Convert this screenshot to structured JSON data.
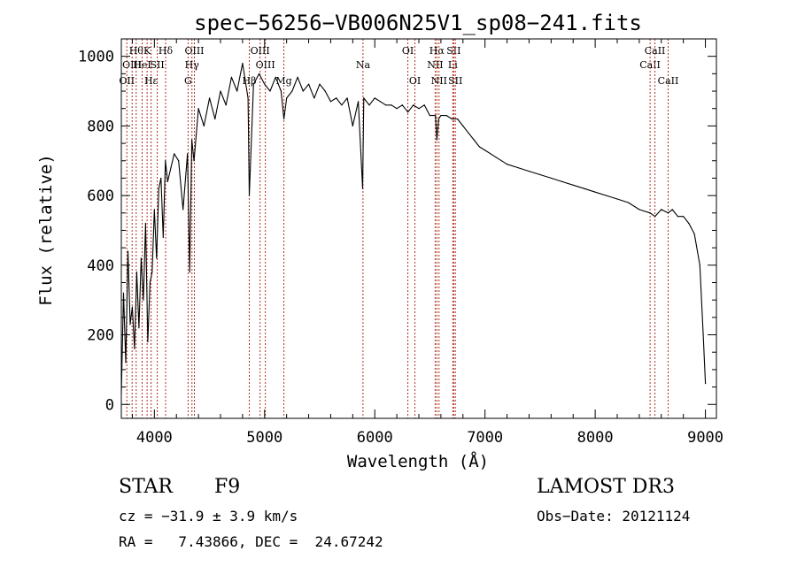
{
  "chart_data": {
    "type": "line",
    "title": "spec−56256−VB006N25V1_sp08−241.fits",
    "xlabel": "Wavelength (Å)",
    "ylabel": "Flux (relative)",
    "xlim": [
      3700,
      9100
    ],
    "ylim": [
      -40,
      1050
    ],
    "xticks": [
      4000,
      5000,
      6000,
      7000,
      8000,
      9000
    ],
    "yticks": [
      0,
      200,
      400,
      600,
      800,
      1000
    ],
    "grid": false,
    "series": [
      {
        "name": "spectrum",
        "x": [
          3700,
          3720,
          3740,
          3760,
          3780,
          3800,
          3820,
          3840,
          3860,
          3880,
          3900,
          3920,
          3940,
          3960,
          3980,
          4000,
          4020,
          4040,
          4060,
          4080,
          4100,
          4120,
          4150,
          4180,
          4220,
          4260,
          4300,
          4320,
          4340,
          4360,
          4400,
          4450,
          4500,
          4550,
          4600,
          4650,
          4700,
          4750,
          4800,
          4850,
          4861,
          4900,
          4950,
          5000,
          5050,
          5100,
          5150,
          5175,
          5200,
          5250,
          5300,
          5350,
          5400,
          5450,
          5500,
          5550,
          5600,
          5650,
          5700,
          5750,
          5800,
          5850,
          5890,
          5900,
          5950,
          6000,
          6050,
          6100,
          6150,
          6200,
          6250,
          6300,
          6350,
          6400,
          6450,
          6500,
          6550,
          6563,
          6580,
          6600,
          6650,
          6700,
          6750,
          6800,
          6850,
          6900,
          6950,
          7000,
          7100,
          7200,
          7300,
          7400,
          7500,
          7600,
          7700,
          7800,
          7900,
          8000,
          8100,
          8200,
          8300,
          8400,
          8498,
          8542,
          8600,
          8662,
          8700,
          8750,
          8800,
          8850,
          8900,
          8950,
          8980,
          9000
        ],
        "values": [
          30,
          320,
          120,
          440,
          230,
          280,
          160,
          380,
          220,
          420,
          300,
          520,
          180,
          350,
          380,
          560,
          420,
          620,
          650,
          480,
          700,
          640,
          680,
          720,
          700,
          560,
          720,
          380,
          760,
          700,
          850,
          800,
          880,
          820,
          900,
          860,
          940,
          900,
          980,
          880,
          600,
          920,
          950,
          920,
          900,
          940,
          900,
          820,
          880,
          900,
          940,
          900,
          920,
          880,
          920,
          900,
          870,
          880,
          860,
          880,
          800,
          870,
          620,
          880,
          860,
          880,
          870,
          860,
          860,
          850,
          860,
          840,
          860,
          850,
          860,
          830,
          830,
          760,
          820,
          830,
          830,
          820,
          820,
          800,
          780,
          760,
          740,
          730,
          710,
          690,
          680,
          670,
          660,
          650,
          640,
          630,
          620,
          610,
          600,
          590,
          580,
          560,
          550,
          540,
          560,
          550,
          560,
          540,
          540,
          520,
          490,
          400,
          200,
          60
        ]
      }
    ],
    "lines": [
      {
        "wl": 3750,
        "label": "OII",
        "row": 2
      },
      {
        "wl": 3798,
        "label": "OIII",
        "row": 1
      },
      {
        "wl": 3835,
        "label": "Hθ",
        "row": 0
      },
      {
        "wl": 3889,
        "label": "HeI",
        "row": 1
      },
      {
        "wl": 3934,
        "label": "K",
        "row": 0
      },
      {
        "wl": 3970,
        "label": "Hε",
        "row": 2
      },
      {
        "wl": 4026,
        "label": "SII",
        "row": 1
      },
      {
        "wl": 4102,
        "label": "Hδ",
        "row": 0
      },
      {
        "wl": 4306,
        "label": "G",
        "row": 2
      },
      {
        "wl": 4341,
        "label": "Hγ",
        "row": 1
      },
      {
        "wl": 4363,
        "label": "OIII",
        "row": 0
      },
      {
        "wl": 4861,
        "label": "Hβ",
        "row": 2
      },
      {
        "wl": 4959,
        "label": "OIII",
        "row": 0
      },
      {
        "wl": 5007,
        "label": "OIII",
        "row": 1
      },
      {
        "wl": 5175,
        "label": "Mg",
        "row": 2
      },
      {
        "wl": 5893,
        "label": "Na",
        "row": 1
      },
      {
        "wl": 6300,
        "label": "OI",
        "row": 0
      },
      {
        "wl": 6364,
        "label": "OI",
        "row": 2
      },
      {
        "wl": 6548,
        "label": "NII",
        "row": 1
      },
      {
        "wl": 6563,
        "label": "Hα",
        "row": 0
      },
      {
        "wl": 6583,
        "label": "NII",
        "row": 2
      },
      {
        "wl": 6708,
        "label": "Li",
        "row": 1
      },
      {
        "wl": 6716,
        "label": "SII",
        "row": 0
      },
      {
        "wl": 6731,
        "label": "SII",
        "row": 2
      },
      {
        "wl": 8498,
        "label": "CaII",
        "row": 1
      },
      {
        "wl": 8542,
        "label": "CaII",
        "row": 0
      },
      {
        "wl": 8662,
        "label": "CaII",
        "row": 2
      }
    ],
    "line_color": "#b03020"
  },
  "info": {
    "class_text": "STAR",
    "subclass_text": "F9",
    "survey_text": "LAMOST DR3",
    "cz_text": "cz = −31.9 ± 3.9 km/s",
    "obs_date_text": "Obs−Date: 20121124",
    "coords_text": "RA =   7.43866, DEC =  24.67242"
  }
}
